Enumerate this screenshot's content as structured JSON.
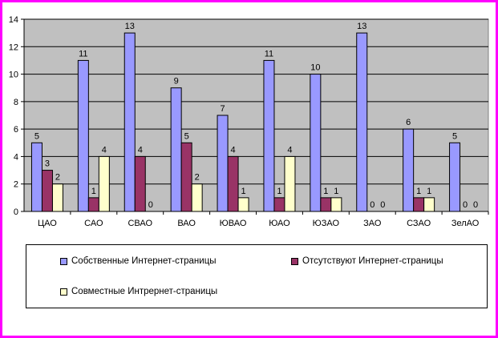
{
  "chart_data": {
    "type": "bar",
    "categories": [
      "ЦАО",
      "САО",
      "СВАО",
      "ВАО",
      "ЮВАО",
      "ЮАО",
      "ЮЗАО",
      "ЗАО",
      "СЗАО",
      "ЗелАО"
    ],
    "series": [
      {
        "name": "Собственные Интернет-страницы",
        "color": "#9999ff",
        "values": [
          5,
          11,
          13,
          9,
          7,
          11,
          10,
          13,
          6,
          5
        ]
      },
      {
        "name": "Отсутствуют Интернет-страницы",
        "color": "#993366",
        "values": [
          3,
          1,
          4,
          5,
          4,
          1,
          1,
          0,
          1,
          0
        ]
      },
      {
        "name": "Совместные Интрернет-страницы",
        "color": "#ffffcc",
        "values": [
          2,
          4,
          0,
          2,
          1,
          4,
          1,
          0,
          1,
          0
        ]
      }
    ],
    "yticks": [
      "0",
      "2",
      "4",
      "6",
      "8",
      "10",
      "12",
      "14"
    ],
    "ylim": [
      0,
      14
    ],
    "grid": true,
    "plot_background": "#c0c0c0",
    "legend_position": "bottom",
    "data_labels": true
  }
}
